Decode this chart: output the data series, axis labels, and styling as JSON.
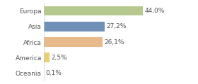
{
  "categories": [
    "Europa",
    "Asia",
    "Africa",
    "America",
    "Oceania"
  ],
  "values": [
    44.0,
    27.2,
    26.1,
    2.5,
    0.1
  ],
  "labels": [
    "44,0%",
    "27,2%",
    "26,1%",
    "2,5%",
    "0,1%"
  ],
  "bar_colors": [
    "#b5c98e",
    "#7090b8",
    "#e8b98a",
    "#e8d070",
    "#d0d0d0"
  ],
  "background_color": "#ffffff",
  "text_color": "#555555",
  "bar_height": 0.6,
  "label_fontsize": 6.5,
  "tick_fontsize": 6.5,
  "xlim": [
    0,
    58
  ],
  "figsize": [
    2.8,
    1.2
  ],
  "dpi": 100
}
